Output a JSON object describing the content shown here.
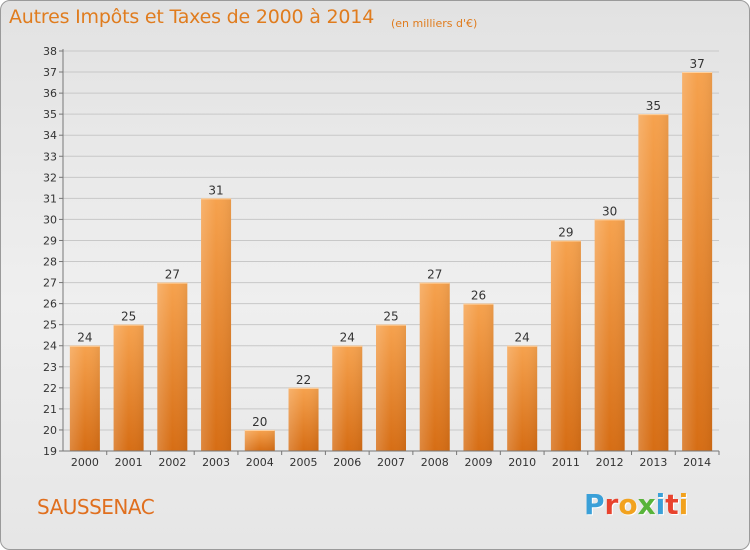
{
  "header": {
    "title": "Autres Impôts et Taxes de 2000 à 2014",
    "subtitle": "(en milliers d'€)"
  },
  "footer": {
    "commune": "SAUSSENAC",
    "brand_letters": [
      "P",
      "r",
      "o",
      "x",
      "i",
      "t",
      "i"
    ],
    "brand_colors": [
      "#3aa0d8",
      "#e8432e",
      "#f2a21e",
      "#58b43a",
      "#3aa0d8",
      "#e8432e",
      "#f2a21e"
    ]
  },
  "chart_data": {
    "type": "bar",
    "title": "Autres Impôts et Taxes de 2000 à 2014",
    "subtitle": "(en milliers d'€)",
    "categories": [
      "2000",
      "2001",
      "2002",
      "2003",
      "2004",
      "2005",
      "2006",
      "2007",
      "2008",
      "2009",
      "2010",
      "2011",
      "2012",
      "2013",
      "2014"
    ],
    "values": [
      24,
      25,
      27,
      31,
      20,
      22,
      24,
      25,
      27,
      26,
      24,
      29,
      30,
      35,
      37
    ],
    "ylim": [
      19,
      38
    ],
    "yticks": [
      19,
      20,
      21,
      22,
      23,
      24,
      25,
      26,
      27,
      28,
      29,
      30,
      31,
      32,
      33,
      34,
      35,
      36,
      37,
      38
    ],
    "grid": true,
    "legend": "none",
    "bar_color": "#f2a04a",
    "bar_color_dark": "#d9731a"
  }
}
